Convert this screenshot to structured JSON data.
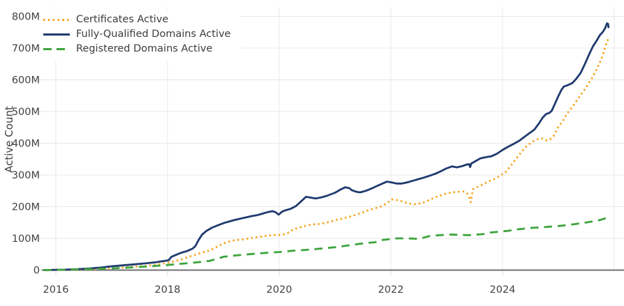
{
  "chart_data": {
    "type": "line",
    "title": "",
    "xlabel": "",
    "ylabel": "Active Count",
    "grid": true,
    "legend_position": "top-left",
    "x_range": [
      2015.75,
      2026.18
    ],
    "y_range_millions": [
      0,
      830
    ],
    "x_ticks": [
      {
        "value": 2016,
        "label": "2016"
      },
      {
        "value": 2018,
        "label": "2018"
      },
      {
        "value": 2020,
        "label": "2020"
      },
      {
        "value": 2022,
        "label": "2022"
      },
      {
        "value": 2024,
        "label": "2024"
      }
    ],
    "x_gridline_years": [
      2016,
      2018,
      2020,
      2022,
      2024,
      2026
    ],
    "y_ticks": [
      {
        "value": 0,
        "label": "0"
      },
      {
        "value": 100,
        "label": "100M"
      },
      {
        "value": 200,
        "label": "200M"
      },
      {
        "value": 300,
        "label": "300M"
      },
      {
        "value": 400,
        "label": "400M"
      },
      {
        "value": 500,
        "label": "500M"
      },
      {
        "value": 600,
        "label": "600M"
      },
      {
        "value": 700,
        "label": "700M"
      },
      {
        "value": 800,
        "label": "800M"
      }
    ],
    "colors": {
      "grid": "#e8e8e8",
      "tick": "#d8d8d8",
      "zero_line": "#6e7073",
      "text": "#414141"
    },
    "series": [
      {
        "name": "Certificates Active",
        "color": "#F5A41D",
        "style": "dotted",
        "points": [
          [
            2015.78,
            0
          ],
          [
            2016.2,
            0.8
          ],
          [
            2016.5,
            2
          ],
          [
            2016.8,
            4
          ],
          [
            2017.0,
            6
          ],
          [
            2017.3,
            9
          ],
          [
            2017.6,
            13
          ],
          [
            2017.8,
            17
          ],
          [
            2018.0,
            23
          ],
          [
            2018.15,
            29
          ],
          [
            2018.3,
            37
          ],
          [
            2018.45,
            46
          ],
          [
            2018.6,
            54
          ],
          [
            2018.75,
            62
          ],
          [
            2018.85,
            70
          ],
          [
            2019.0,
            84
          ],
          [
            2019.1,
            90
          ],
          [
            2019.2,
            94
          ],
          [
            2019.35,
            97
          ],
          [
            2019.5,
            101
          ],
          [
            2019.65,
            105
          ],
          [
            2019.8,
            109
          ],
          [
            2019.95,
            111
          ],
          [
            2020.05,
            111
          ],
          [
            2020.15,
            117
          ],
          [
            2020.25,
            128
          ],
          [
            2020.33,
            133
          ],
          [
            2020.42,
            137
          ],
          [
            2020.5,
            141
          ],
          [
            2020.6,
            144
          ],
          [
            2020.7,
            145
          ],
          [
            2020.8,
            148
          ],
          [
            2020.9,
            152
          ],
          [
            2021.0,
            157
          ],
          [
            2021.1,
            161
          ],
          [
            2021.2,
            166
          ],
          [
            2021.3,
            170
          ],
          [
            2021.4,
            176
          ],
          [
            2021.5,
            182
          ],
          [
            2021.6,
            189
          ],
          [
            2021.7,
            194
          ],
          [
            2021.8,
            199
          ],
          [
            2021.88,
            206
          ],
          [
            2021.96,
            215
          ],
          [
            2022.02,
            223
          ],
          [
            2022.1,
            221
          ],
          [
            2022.2,
            217
          ],
          [
            2022.3,
            211
          ],
          [
            2022.42,
            208
          ],
          [
            2022.52,
            210
          ],
          [
            2022.62,
            215
          ],
          [
            2022.72,
            224
          ],
          [
            2022.82,
            231
          ],
          [
            2022.92,
            237
          ],
          [
            2023.0,
            242
          ],
          [
            2023.1,
            245
          ],
          [
            2023.2,
            247
          ],
          [
            2023.3,
            248
          ],
          [
            2023.36,
            244
          ],
          [
            2023.4,
            231
          ],
          [
            2023.43,
            214
          ],
          [
            2023.47,
            255
          ],
          [
            2023.55,
            262
          ],
          [
            2023.65,
            270
          ],
          [
            2023.75,
            280
          ],
          [
            2023.85,
            287
          ],
          [
            2023.95,
            297
          ],
          [
            2024.05,
            308
          ],
          [
            2024.15,
            330
          ],
          [
            2024.25,
            352
          ],
          [
            2024.35,
            375
          ],
          [
            2024.45,
            394
          ],
          [
            2024.55,
            406
          ],
          [
            2024.63,
            413
          ],
          [
            2024.7,
            415
          ],
          [
            2024.78,
            409
          ],
          [
            2024.85,
            412
          ],
          [
            2024.92,
            424
          ],
          [
            2025.0,
            452
          ],
          [
            2025.08,
            470
          ],
          [
            2025.15,
            492
          ],
          [
            2025.25,
            515
          ],
          [
            2025.35,
            540
          ],
          [
            2025.44,
            562
          ],
          [
            2025.52,
            582
          ],
          [
            2025.6,
            605
          ],
          [
            2025.67,
            628
          ],
          [
            2025.73,
            650
          ],
          [
            2025.78,
            670
          ],
          [
            2025.82,
            692
          ],
          [
            2025.85,
            710
          ],
          [
            2025.88,
            724
          ],
          [
            2025.9,
            731
          ]
        ]
      },
      {
        "name": "Fully-Qualified Domains Active",
        "color": "#1F3B6F",
        "style": "solid",
        "points": [
          [
            2015.78,
            0
          ],
          [
            2016.0,
            0.8
          ],
          [
            2016.2,
            1.5
          ],
          [
            2016.4,
            3
          ],
          [
            2016.6,
            5
          ],
          [
            2016.8,
            8
          ],
          [
            2017.0,
            12
          ],
          [
            2017.2,
            15
          ],
          [
            2017.4,
            18
          ],
          [
            2017.6,
            21
          ],
          [
            2017.8,
            25
          ],
          [
            2017.95,
            29
          ],
          [
            2018.02,
            31
          ],
          [
            2018.07,
            42
          ],
          [
            2018.15,
            48
          ],
          [
            2018.25,
            55
          ],
          [
            2018.35,
            60
          ],
          [
            2018.45,
            68
          ],
          [
            2018.5,
            76
          ],
          [
            2018.56,
            96
          ],
          [
            2018.62,
            112
          ],
          [
            2018.7,
            124
          ],
          [
            2018.8,
            134
          ],
          [
            2018.9,
            141
          ],
          [
            2019.0,
            148
          ],
          [
            2019.1,
            153
          ],
          [
            2019.2,
            158
          ],
          [
            2019.3,
            162
          ],
          [
            2019.4,
            166
          ],
          [
            2019.5,
            170
          ],
          [
            2019.6,
            173
          ],
          [
            2019.7,
            178
          ],
          [
            2019.8,
            183
          ],
          [
            2019.88,
            186
          ],
          [
            2019.94,
            182
          ],
          [
            2019.99,
            175
          ],
          [
            2020.05,
            184
          ],
          [
            2020.1,
            188
          ],
          [
            2020.2,
            193
          ],
          [
            2020.3,
            202
          ],
          [
            2020.4,
            218
          ],
          [
            2020.48,
            231
          ],
          [
            2020.55,
            229
          ],
          [
            2020.65,
            226
          ],
          [
            2020.75,
            229
          ],
          [
            2020.85,
            234
          ],
          [
            2021.0,
            244
          ],
          [
            2021.1,
            254
          ],
          [
            2021.18,
            261
          ],
          [
            2021.25,
            259
          ],
          [
            2021.3,
            252
          ],
          [
            2021.38,
            247
          ],
          [
            2021.45,
            245
          ],
          [
            2021.55,
            250
          ],
          [
            2021.65,
            257
          ],
          [
            2021.75,
            265
          ],
          [
            2021.85,
            273
          ],
          [
            2021.93,
            279
          ],
          [
            2022.0,
            277
          ],
          [
            2022.1,
            273
          ],
          [
            2022.2,
            273
          ],
          [
            2022.3,
            277
          ],
          [
            2022.4,
            282
          ],
          [
            2022.5,
            287
          ],
          [
            2022.6,
            292
          ],
          [
            2022.7,
            298
          ],
          [
            2022.8,
            304
          ],
          [
            2022.9,
            312
          ],
          [
            2023.0,
            321
          ],
          [
            2023.1,
            327
          ],
          [
            2023.18,
            324
          ],
          [
            2023.28,
            328
          ],
          [
            2023.36,
            333
          ],
          [
            2023.4,
            334
          ],
          [
            2023.42,
            325
          ],
          [
            2023.44,
            336
          ],
          [
            2023.52,
            344
          ],
          [
            2023.6,
            352
          ],
          [
            2023.7,
            356
          ],
          [
            2023.8,
            359
          ],
          [
            2023.9,
            367
          ],
          [
            2024.0,
            379
          ],
          [
            2024.1,
            389
          ],
          [
            2024.2,
            398
          ],
          [
            2024.3,
            408
          ],
          [
            2024.4,
            421
          ],
          [
            2024.5,
            434
          ],
          [
            2024.57,
            443
          ],
          [
            2024.65,
            462
          ],
          [
            2024.72,
            481
          ],
          [
            2024.78,
            492
          ],
          [
            2024.83,
            495
          ],
          [
            2024.88,
            502
          ],
          [
            2024.94,
            525
          ],
          [
            2025.0,
            549
          ],
          [
            2025.06,
            570
          ],
          [
            2025.1,
            579
          ],
          [
            2025.18,
            584
          ],
          [
            2025.25,
            590
          ],
          [
            2025.32,
            603
          ],
          [
            2025.4,
            622
          ],
          [
            2025.48,
            652
          ],
          [
            2025.55,
            680
          ],
          [
            2025.62,
            706
          ],
          [
            2025.68,
            722
          ],
          [
            2025.74,
            740
          ],
          [
            2025.8,
            752
          ],
          [
            2025.84,
            764
          ],
          [
            2025.87,
            778
          ],
          [
            2025.89,
            776
          ],
          [
            2025.9,
            763
          ]
        ]
      },
      {
        "name": "Registered Domains Active",
        "color": "#3CA43C",
        "style": "dashed",
        "points": [
          [
            2015.78,
            0
          ],
          [
            2016.2,
            1.5
          ],
          [
            2016.5,
            3
          ],
          [
            2016.8,
            4.5
          ],
          [
            2017.0,
            5.5
          ],
          [
            2017.3,
            8
          ],
          [
            2017.6,
            11
          ],
          [
            2017.8,
            13.5
          ],
          [
            2018.0,
            16
          ],
          [
            2018.25,
            20
          ],
          [
            2018.5,
            24
          ],
          [
            2018.75,
            29
          ],
          [
            2018.9,
            36
          ],
          [
            2019.0,
            42
          ],
          [
            2019.2,
            46
          ],
          [
            2019.4,
            49
          ],
          [
            2019.6,
            52
          ],
          [
            2019.8,
            55
          ],
          [
            2020.0,
            57
          ],
          [
            2020.25,
            61
          ],
          [
            2020.5,
            64
          ],
          [
            2020.75,
            68
          ],
          [
            2021.0,
            72
          ],
          [
            2021.2,
            77
          ],
          [
            2021.4,
            82
          ],
          [
            2021.6,
            86
          ],
          [
            2021.72,
            88
          ],
          [
            2021.8,
            94
          ],
          [
            2021.95,
            97
          ],
          [
            2022.1,
            100
          ],
          [
            2022.3,
            100
          ],
          [
            2022.45,
            99
          ],
          [
            2022.58,
            102
          ],
          [
            2022.68,
            107
          ],
          [
            2022.8,
            109
          ],
          [
            2022.95,
            111
          ],
          [
            2023.1,
            112
          ],
          [
            2023.25,
            111
          ],
          [
            2023.4,
            110
          ],
          [
            2023.52,
            112
          ],
          [
            2023.62,
            113
          ],
          [
            2023.72,
            115
          ],
          [
            2023.8,
            119
          ],
          [
            2023.95,
            121
          ],
          [
            2024.1,
            124
          ],
          [
            2024.3,
            129
          ],
          [
            2024.5,
            133
          ],
          [
            2024.7,
            135
          ],
          [
            2024.85,
            137
          ],
          [
            2025.0,
            139
          ],
          [
            2025.15,
            142
          ],
          [
            2025.3,
            145
          ],
          [
            2025.45,
            149
          ],
          [
            2025.6,
            153
          ],
          [
            2025.72,
            157
          ],
          [
            2025.82,
            162
          ],
          [
            2025.88,
            166
          ],
          [
            2025.9,
            168
          ]
        ]
      }
    ]
  }
}
